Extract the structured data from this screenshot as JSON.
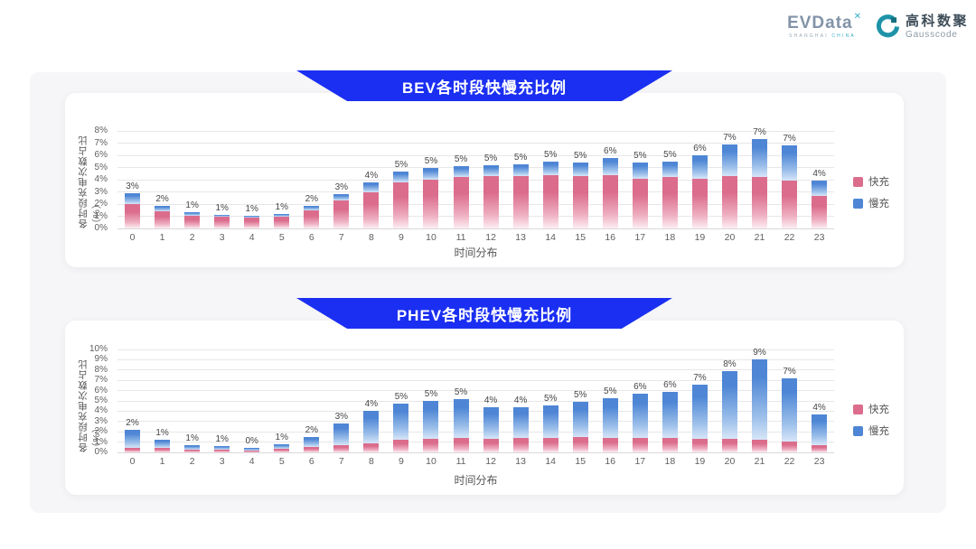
{
  "logo": {
    "evdata_text": "EVData",
    "evdata_sup": "✕",
    "evdata_tagline_1": "SHANGHAI",
    "evdata_tagline_2": "CHINA",
    "gausscode_cn": "高科数聚",
    "gausscode_en": "Gausscode"
  },
  "colors": {
    "fast": "#db6c8c",
    "slow": "#4e86d5",
    "banner": "#1b2ff2",
    "brand_teal": "#1e93a8"
  },
  "chart_data": [
    {
      "type": "bar",
      "stacked": true,
      "title": "BEV各时段快慢充比例",
      "xlabel": "时间分布",
      "ylabel": "各时段充电次数占比（%）",
      "ylim": [
        0,
        8
      ],
      "grid": true,
      "legend_position": "right",
      "categories": [
        "0",
        "1",
        "2",
        "3",
        "4",
        "5",
        "6",
        "7",
        "8",
        "9",
        "10",
        "11",
        "12",
        "13",
        "14",
        "15",
        "16",
        "17",
        "18",
        "19",
        "20",
        "21",
        "22",
        "23"
      ],
      "bar_labels": [
        "3%",
        "2%",
        "1%",
        "1%",
        "1%",
        "1%",
        "2%",
        "3%",
        "4%",
        "5%",
        "5%",
        "5%",
        "5%",
        "5%",
        "5%",
        "5%",
        "6%",
        "5%",
        "5%",
        "6%",
        "7%",
        "7%",
        "7%",
        "4%"
      ],
      "series": [
        {
          "name": "快充",
          "values": [
            2.0,
            1.4,
            1.05,
            0.95,
            0.9,
            1.0,
            1.5,
            2.3,
            3.0,
            3.8,
            4.0,
            4.2,
            4.3,
            4.3,
            4.35,
            4.3,
            4.4,
            4.1,
            4.2,
            4.1,
            4.3,
            4.2,
            3.9,
            2.7
          ]
        },
        {
          "name": "慢充",
          "values": [
            0.9,
            0.45,
            0.25,
            0.2,
            0.1,
            0.2,
            0.35,
            0.5,
            0.8,
            0.9,
            1.0,
            0.9,
            0.9,
            1.0,
            1.1,
            1.15,
            1.35,
            1.35,
            1.25,
            1.9,
            2.6,
            3.1,
            2.9,
            1.2
          ]
        }
      ]
    },
    {
      "type": "bar",
      "stacked": true,
      "title": "PHEV各时段快慢充比例",
      "xlabel": "时间分布",
      "ylabel": "各时段充电次数占比（%）",
      "ylim": [
        0,
        10
      ],
      "grid": true,
      "legend_position": "right",
      "categories": [
        "0",
        "1",
        "2",
        "3",
        "4",
        "5",
        "6",
        "7",
        "8",
        "9",
        "10",
        "11",
        "12",
        "13",
        "14",
        "15",
        "16",
        "17",
        "18",
        "19",
        "20",
        "21",
        "22",
        "23"
      ],
      "bar_labels": [
        "2%",
        "1%",
        "1%",
        "1%",
        "0%",
        "1%",
        "2%",
        "3%",
        "4%",
        "5%",
        "5%",
        "5%",
        "4%",
        "4%",
        "5%",
        "5%",
        "5%",
        "6%",
        "6%",
        "7%",
        "8%",
        "9%",
        "7%",
        "4%"
      ],
      "series": [
        {
          "name": "快充",
          "values": [
            0.45,
            0.4,
            0.3,
            0.25,
            0.2,
            0.35,
            0.5,
            0.7,
            0.9,
            1.2,
            1.3,
            1.4,
            1.3,
            1.4,
            1.4,
            1.5,
            1.4,
            1.4,
            1.4,
            1.3,
            1.3,
            1.2,
            1.1,
            0.7
          ]
        },
        {
          "name": "慢充",
          "values": [
            1.75,
            0.8,
            0.45,
            0.35,
            0.25,
            0.4,
            1.0,
            2.1,
            3.1,
            3.5,
            3.7,
            3.8,
            3.1,
            3.0,
            3.2,
            3.4,
            3.9,
            4.3,
            4.5,
            5.3,
            6.6,
            7.8,
            6.1,
            3.0
          ]
        }
      ]
    }
  ]
}
